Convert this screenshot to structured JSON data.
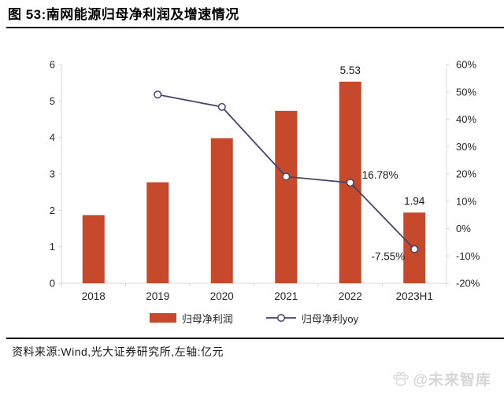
{
  "header": {
    "title": "图 53:南网能源归母净利润及增速情况"
  },
  "chart_data": {
    "type": "combo",
    "title": "南网能源归母净利润及增速情况",
    "categories": [
      "2018",
      "2019",
      "2020",
      "2021",
      "2022",
      "2023H1"
    ],
    "series": [
      {
        "name": "归母净利润",
        "type": "bar",
        "axis": "left",
        "color": "#c6492b",
        "values": [
          1.87,
          2.77,
          3.98,
          4.73,
          5.53,
          1.94
        ],
        "value_labels": {
          "4": "5.53",
          "5": "1.94"
        }
      },
      {
        "name": "归母净利yoy",
        "type": "line",
        "axis": "right",
        "color": "#45466b",
        "marker": "open-circle",
        "values": [
          null,
          49,
          44.5,
          19,
          16.78,
          -7.55
        ],
        "value_labels": {
          "4": "16.78%",
          "5": "-7.55%"
        }
      }
    ],
    "left_axis": {
      "min": 0,
      "max": 6,
      "step": 1,
      "ticks": [
        "0",
        "1",
        "2",
        "3",
        "4",
        "5",
        "6"
      ],
      "unit": "亿元"
    },
    "right_axis": {
      "min": -20,
      "max": 60,
      "step": 10,
      "ticks": [
        "-20%",
        "-10%",
        "0%",
        "10%",
        "20%",
        "30%",
        "40%",
        "50%",
        "60%"
      ]
    },
    "grid": false,
    "legend_position": "bottom",
    "axis_color": "#d9d9d9",
    "label_color": "#262626"
  },
  "legend": {
    "bar_label": "归母净利润",
    "line_label": "归母净利yoy"
  },
  "footer": {
    "source": "资料来源:Wind,光大证券研究所,左轴:亿元",
    "watermark": "@未来智库"
  }
}
